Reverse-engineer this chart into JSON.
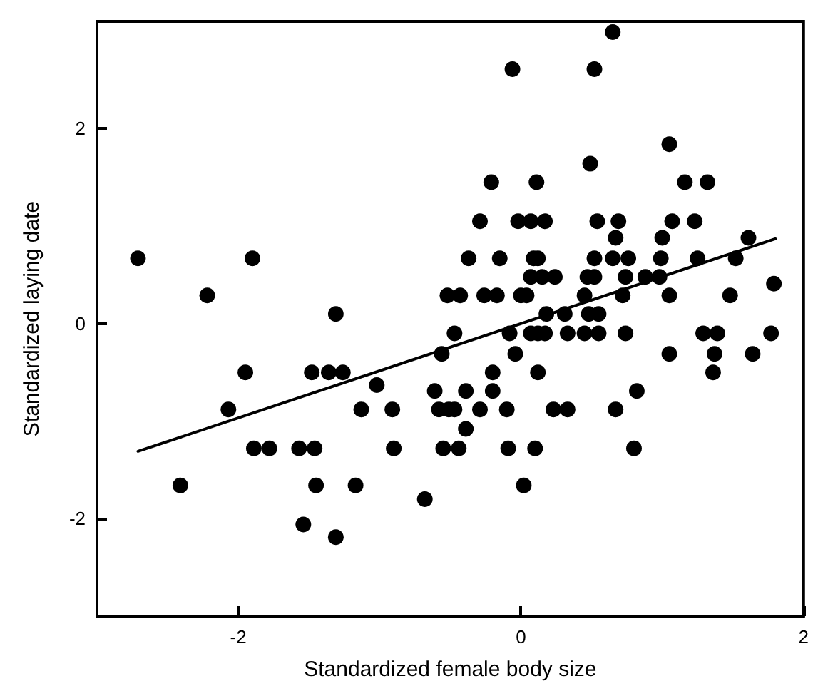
{
  "chart_data": {
    "type": "scatter",
    "xlabel": "Standardized female body size",
    "ylabel": "Standardized laying date",
    "xlim": [
      -3,
      2
    ],
    "ylim": [
      -3,
      3.1
    ],
    "xticks": [
      -2,
      0,
      2
    ],
    "yticks": [
      -2,
      0,
      2
    ],
    "marker": "circle",
    "series": [
      {
        "color": "#000000",
        "x": [
          -2.71,
          -2.22,
          -1.9,
          -1.31,
          -1.95,
          -1.48,
          -1.36,
          -1.26,
          -1.02,
          -2.07,
          -1.13,
          -0.91,
          -0.61,
          -0.58,
          -1.89,
          -1.78,
          -1.57,
          -1.46,
          -0.9,
          -0.55,
          -2.41,
          -1.45,
          -1.17,
          -0.68,
          -1.54,
          -1.31,
          -0.56,
          0.65,
          -0.06,
          0.52,
          1.05,
          0.49,
          -0.21,
          0.11,
          1.16,
          1.32,
          -0.29,
          -0.02,
          0.07,
          0.17,
          0.54,
          0.69,
          1.07,
          1.23,
          0.67,
          1.0,
          1.61,
          -0.37,
          -0.15,
          0.09,
          0.12,
          0.52,
          0.65,
          0.76,
          0.99,
          1.25,
          1.52,
          0.07,
          0.15,
          0.24,
          0.47,
          0.52,
          0.74,
          0.88,
          0.98,
          1.79,
          -0.52,
          -0.43,
          -0.26,
          -0.17,
          0.0,
          0.04,
          0.45,
          0.72,
          1.05,
          1.48,
          0.18,
          0.31,
          0.48,
          0.55,
          -0.47,
          -0.08,
          0.07,
          0.12,
          0.17,
          0.33,
          0.45,
          0.55,
          0.74,
          1.29,
          1.39,
          1.77,
          -0.04,
          1.05,
          1.37,
          1.64,
          -0.2,
          0.12,
          1.36,
          -0.39,
          -0.2,
          0.82,
          -0.51,
          -0.47,
          -0.29,
          -0.1,
          0.23,
          0.33,
          0.67,
          -0.39,
          -0.44,
          -0.09,
          0.1,
          0.8,
          0.02
        ],
        "values": [
          0.67,
          0.29,
          0.67,
          0.1,
          -0.5,
          -0.5,
          -0.5,
          -0.5,
          -0.63,
          -0.88,
          -0.88,
          -0.88,
          -0.69,
          -0.88,
          -1.28,
          -1.28,
          -1.28,
          -1.28,
          -1.28,
          -1.28,
          -1.66,
          -1.66,
          -1.66,
          -1.8,
          -2.06,
          -2.19,
          -0.31,
          2.99,
          2.61,
          2.61,
          1.84,
          1.64,
          1.45,
          1.45,
          1.45,
          1.45,
          1.05,
          1.05,
          1.05,
          1.05,
          1.05,
          1.05,
          1.05,
          1.05,
          0.88,
          0.88,
          0.88,
          0.67,
          0.67,
          0.67,
          0.67,
          0.67,
          0.67,
          0.67,
          0.67,
          0.67,
          0.67,
          0.48,
          0.48,
          0.48,
          0.48,
          0.48,
          0.48,
          0.48,
          0.48,
          0.41,
          0.29,
          0.29,
          0.29,
          0.29,
          0.29,
          0.29,
          0.29,
          0.29,
          0.29,
          0.29,
          0.1,
          0.1,
          0.1,
          0.1,
          -0.1,
          -0.1,
          -0.1,
          -0.1,
          -0.1,
          -0.1,
          -0.1,
          -0.1,
          -0.1,
          -0.1,
          -0.1,
          -0.1,
          -0.31,
          -0.31,
          -0.31,
          -0.31,
          -0.5,
          -0.5,
          -0.5,
          -0.69,
          -0.69,
          -0.69,
          -0.88,
          -0.88,
          -0.88,
          -0.88,
          -0.88,
          -0.88,
          -0.88,
          -1.08,
          -1.28,
          -1.28,
          -1.28,
          -1.28,
          -1.66
        ]
      },
      {
        "type": "line",
        "color": "#000000",
        "marker": "none",
        "line_style": "solid",
        "x": [
          -2.71,
          1.8
        ],
        "values": [
          -1.31,
          0.87
        ]
      }
    ]
  }
}
